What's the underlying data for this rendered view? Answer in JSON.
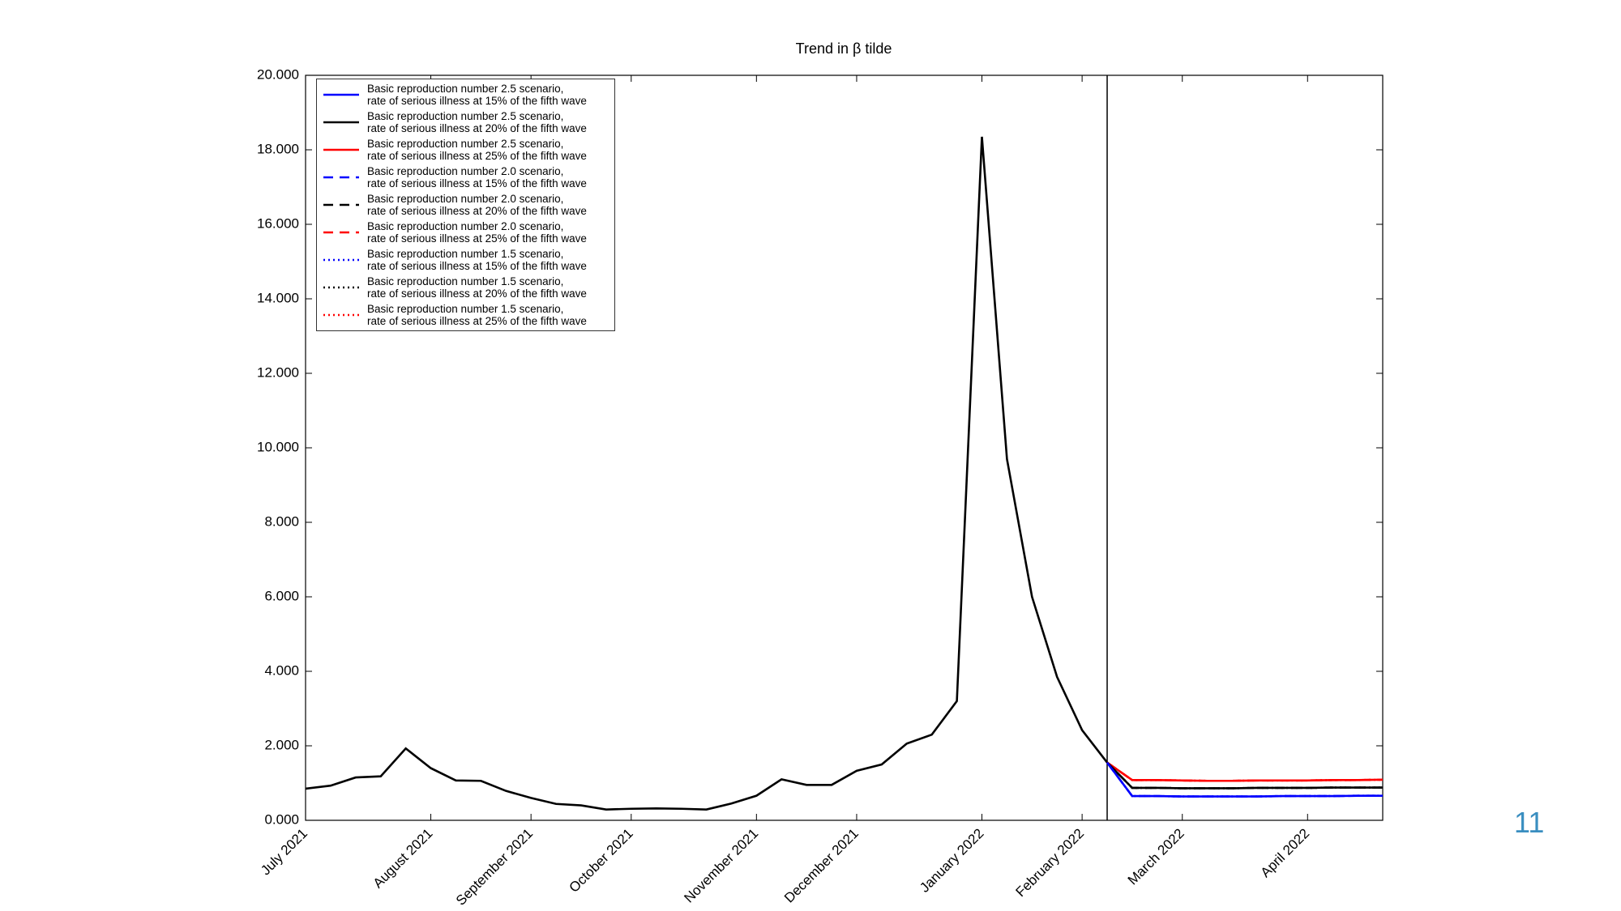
{
  "page_number": "11",
  "chart_data": {
    "type": "line",
    "title": "Trend in β tilde",
    "categories": [
      "July 2021",
      null,
      null,
      null,
      null,
      "August 2021",
      null,
      null,
      null,
      "September 2021",
      null,
      null,
      null,
      "October 2021",
      null,
      null,
      null,
      null,
      "November 2021",
      null,
      null,
      null,
      "December 2021",
      null,
      null,
      null,
      null,
      "January 2022",
      null,
      null,
      null,
      "February 2022",
      null,
      null,
      null,
      "March 2022",
      null,
      null,
      null,
      null,
      "April 2022",
      null,
      null,
      null
    ],
    "ylim": [
      0,
      20
    ],
    "yticks": [
      {
        "value": 0,
        "label": "0.000"
      },
      {
        "value": 2,
        "label": "2.000"
      },
      {
        "value": 4,
        "label": "4.000"
      },
      {
        "value": 6,
        "label": "6.000"
      },
      {
        "value": 8,
        "label": "8.000"
      },
      {
        "value": 10,
        "label": "10.000"
      },
      {
        "value": 12,
        "label": "12.000"
      },
      {
        "value": 14,
        "label": "14.000"
      },
      {
        "value": 16,
        "label": "16.000"
      },
      {
        "value": 18,
        "label": "18.000"
      },
      {
        "value": 20,
        "label": "20.000"
      }
    ],
    "grid": false,
    "series": [
      {
        "color": "#000000",
        "dash": "solid",
        "values": [
          0.85,
          0.93,
          1.15,
          1.18,
          1.93,
          1.4,
          1.07,
          1.06,
          0.79,
          0.6,
          0.44,
          0.4,
          0.29,
          0.31,
          0.32,
          0.31,
          0.29,
          0.45,
          0.66,
          1.1,
          0.95,
          0.95,
          1.33,
          1.5,
          2.06,
          2.3,
          3.2,
          18.35,
          9.7,
          6.0,
          3.85,
          2.42,
          1.55,
          null,
          null,
          null,
          null,
          null,
          null,
          null,
          null,
          null,
          null,
          null
        ]
      },
      {
        "name": "Basic reproduction number 1.5 scenario,\nrate of serious illness at 25% of the fifth wave",
        "color": "#ff0000",
        "dash": "dotted",
        "values": [
          null,
          null,
          null,
          null,
          null,
          null,
          null,
          null,
          null,
          null,
          null,
          null,
          null,
          null,
          null,
          null,
          null,
          null,
          null,
          null,
          null,
          null,
          null,
          null,
          null,
          null,
          null,
          null,
          null,
          null,
          null,
          null,
          1.55,
          1.08,
          1.08,
          1.07,
          1.06,
          1.06,
          1.07,
          1.07,
          1.07,
          1.08,
          1.08,
          1.09
        ]
      },
      {
        "name": "Basic reproduction number 1.5 scenario,\nrate of serious illness at 20% of the fifth wave",
        "color": "#000000",
        "dash": "dotted",
        "values": [
          null,
          null,
          null,
          null,
          null,
          null,
          null,
          null,
          null,
          null,
          null,
          null,
          null,
          null,
          null,
          null,
          null,
          null,
          null,
          null,
          null,
          null,
          null,
          null,
          null,
          null,
          null,
          null,
          null,
          null,
          null,
          null,
          1.55,
          0.87,
          0.87,
          0.86,
          0.86,
          0.86,
          0.87,
          0.87,
          0.87,
          0.88,
          0.88,
          0.88
        ]
      },
      {
        "name": "Basic reproduction number 1.5 scenario,\nrate of serious illness at 15% of the fifth wave",
        "color": "#0000ff",
        "dash": "dotted",
        "values": [
          null,
          null,
          null,
          null,
          null,
          null,
          null,
          null,
          null,
          null,
          null,
          null,
          null,
          null,
          null,
          null,
          null,
          null,
          null,
          null,
          null,
          null,
          null,
          null,
          null,
          null,
          null,
          null,
          null,
          null,
          null,
          null,
          1.55,
          0.65,
          0.65,
          0.64,
          0.64,
          0.64,
          0.64,
          0.65,
          0.65,
          0.65,
          0.66,
          0.66
        ]
      },
      {
        "name": "Basic reproduction number 2.0 scenario,\nrate of serious illness at 25% of the fifth wave",
        "color": "#ff0000",
        "dash": "dashed",
        "values": [
          null,
          null,
          null,
          null,
          null,
          null,
          null,
          null,
          null,
          null,
          null,
          null,
          null,
          null,
          null,
          null,
          null,
          null,
          null,
          null,
          null,
          null,
          null,
          null,
          null,
          null,
          null,
          null,
          null,
          null,
          null,
          null,
          1.55,
          1.08,
          1.08,
          1.07,
          1.06,
          1.06,
          1.07,
          1.07,
          1.07,
          1.08,
          1.08,
          1.09
        ]
      },
      {
        "name": "Basic reproduction number 2.0 scenario,\nrate of serious illness at 20% of the fifth wave",
        "color": "#000000",
        "dash": "dashed",
        "values": [
          null,
          null,
          null,
          null,
          null,
          null,
          null,
          null,
          null,
          null,
          null,
          null,
          null,
          null,
          null,
          null,
          null,
          null,
          null,
          null,
          null,
          null,
          null,
          null,
          null,
          null,
          null,
          null,
          null,
          null,
          null,
          null,
          1.55,
          0.87,
          0.87,
          0.86,
          0.86,
          0.86,
          0.87,
          0.87,
          0.87,
          0.88,
          0.88,
          0.88
        ]
      },
      {
        "name": "Basic reproduction number 2.0 scenario,\nrate of serious illness at 15% of the fifth wave",
        "color": "#0000ff",
        "dash": "dashed",
        "values": [
          null,
          null,
          null,
          null,
          null,
          null,
          null,
          null,
          null,
          null,
          null,
          null,
          null,
          null,
          null,
          null,
          null,
          null,
          null,
          null,
          null,
          null,
          null,
          null,
          null,
          null,
          null,
          null,
          null,
          null,
          null,
          null,
          1.55,
          0.65,
          0.65,
          0.64,
          0.64,
          0.64,
          0.64,
          0.65,
          0.65,
          0.65,
          0.66,
          0.66
        ]
      },
      {
        "name": "Basic reproduction number 2.5 scenario,\nrate of serious illness at 25% of the fifth wave",
        "color": "#ff0000",
        "dash": "solid",
        "values": [
          null,
          null,
          null,
          null,
          null,
          null,
          null,
          null,
          null,
          null,
          null,
          null,
          null,
          null,
          null,
          null,
          null,
          null,
          null,
          null,
          null,
          null,
          null,
          null,
          null,
          null,
          null,
          null,
          null,
          null,
          null,
          null,
          1.55,
          1.08,
          1.08,
          1.07,
          1.06,
          1.06,
          1.07,
          1.07,
          1.07,
          1.08,
          1.08,
          1.09
        ]
      },
      {
        "name": "Basic reproduction number 2.5 scenario,\nrate of serious illness at 20% of the fifth wave",
        "color": "#000000",
        "dash": "solid",
        "values": [
          null,
          null,
          null,
          null,
          null,
          null,
          null,
          null,
          null,
          null,
          null,
          null,
          null,
          null,
          null,
          null,
          null,
          null,
          null,
          null,
          null,
          null,
          null,
          null,
          null,
          null,
          null,
          null,
          null,
          null,
          null,
          null,
          1.55,
          0.87,
          0.87,
          0.86,
          0.86,
          0.86,
          0.87,
          0.87,
          0.87,
          0.88,
          0.88,
          0.88
        ]
      },
      {
        "name": "Basic reproduction number 2.5 scenario,\nrate of serious illness at 15% of the fifth wave",
        "color": "#0000ff",
        "dash": "solid",
        "values": [
          null,
          null,
          null,
          null,
          null,
          null,
          null,
          null,
          null,
          null,
          null,
          null,
          null,
          null,
          null,
          null,
          null,
          null,
          null,
          null,
          null,
          null,
          null,
          null,
          null,
          null,
          null,
          null,
          null,
          null,
          null,
          null,
          1.55,
          0.65,
          0.65,
          0.64,
          0.64,
          0.64,
          0.64,
          0.65,
          0.65,
          0.65,
          0.66,
          0.66
        ]
      }
    ]
  }
}
